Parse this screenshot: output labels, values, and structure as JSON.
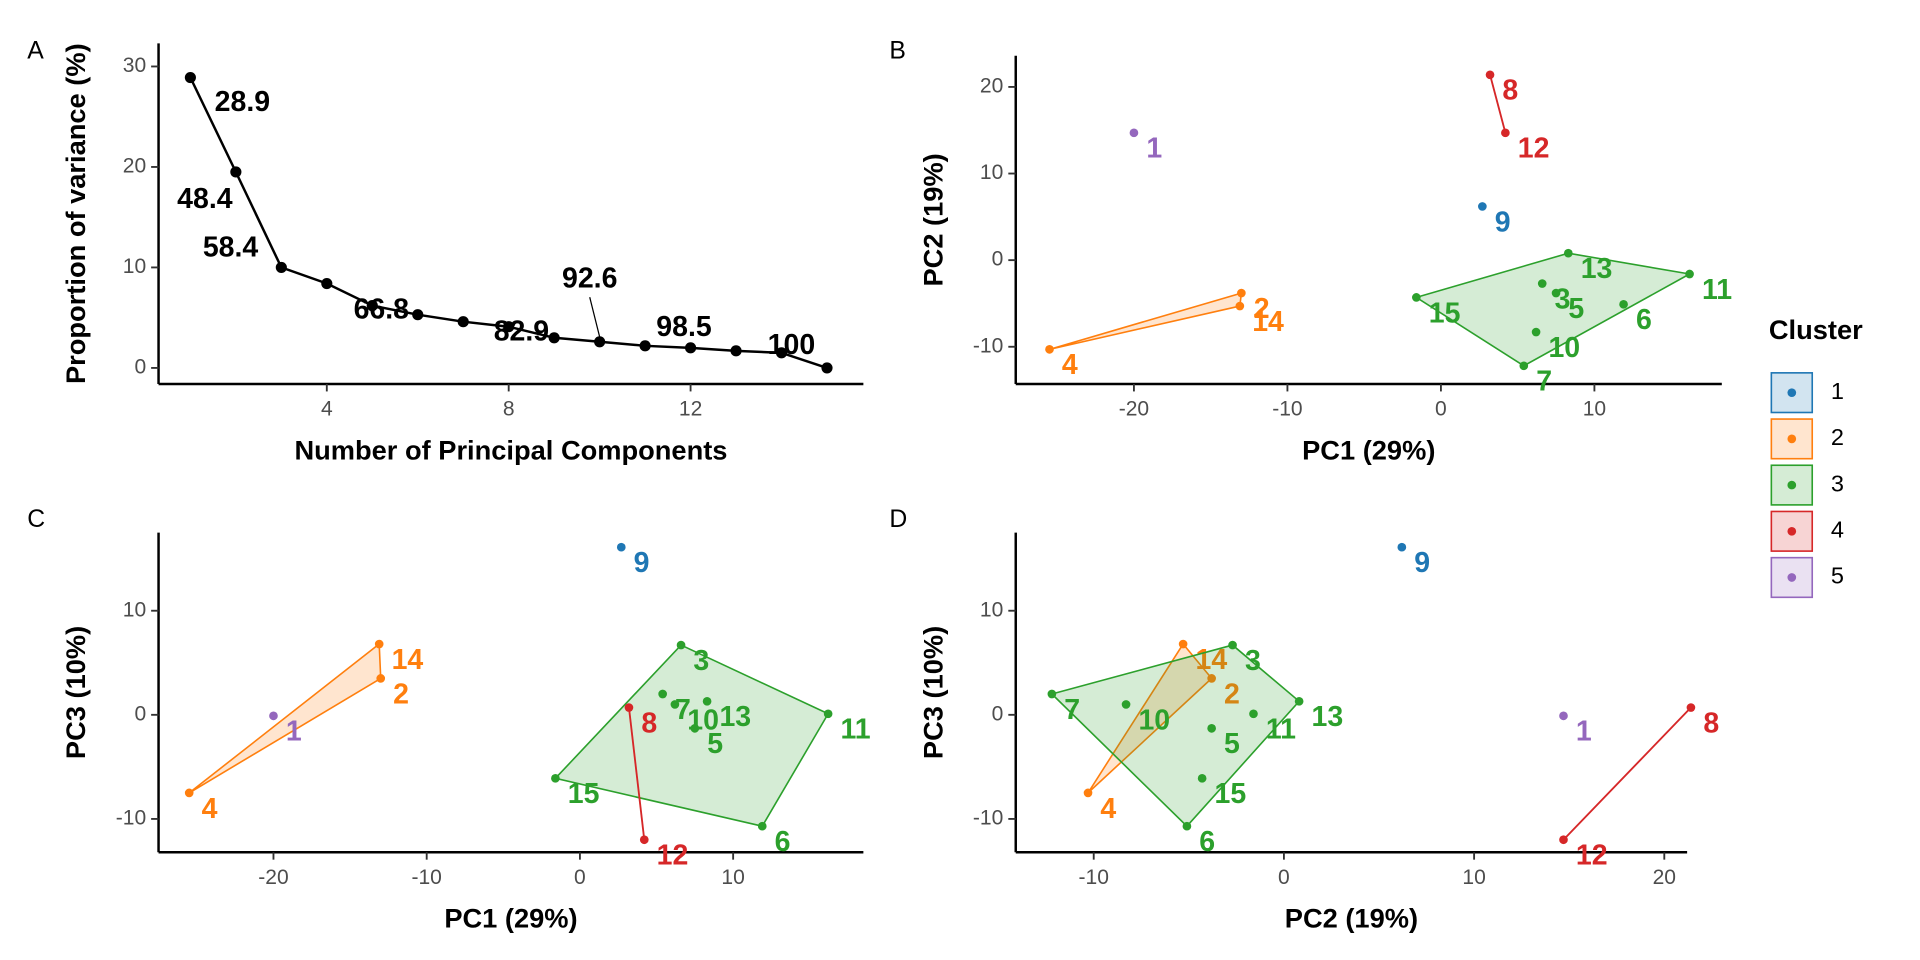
{
  "chart_data": [
    {
      "panel": "A",
      "type": "line",
      "x_label": "Number of Principal Components",
      "y_label": "Proportion of variance (%)",
      "x": [
        1,
        2,
        3,
        4,
        5,
        6,
        7,
        8,
        9,
        10,
        11,
        12,
        13,
        14,
        15
      ],
      "values": [
        28.9,
        19.5,
        10.0,
        8.4,
        6.2,
        5.3,
        4.6,
        4.1,
        3.0,
        2.6,
        2.2,
        2.0,
        1.7,
        1.5,
        0
      ],
      "color": "#000000",
      "annotations": [
        {
          "x": 1,
          "text": "28.9"
        },
        {
          "x": 2,
          "text": "48.4"
        },
        {
          "x": 3,
          "text": "58.4"
        },
        {
          "x": 4,
          "text": "66.8"
        },
        {
          "x": 7,
          "text": "82.9"
        },
        {
          "x": 10,
          "text": "92.6"
        },
        {
          "x": 13,
          "text": "98.5"
        },
        {
          "x": 14,
          "text": "100"
        }
      ],
      "xlim": [
        0.3,
        15.8
      ],
      "ylim": [
        -1.6,
        32.3
      ],
      "xticks": [
        4,
        8,
        12
      ],
      "yticks": [
        0,
        10,
        20,
        30
      ]
    },
    {
      "panel": "B",
      "type": "scatter",
      "x_label": "PC1 (29%)",
      "y_label": "PC2 (19%)",
      "xlim": [
        -27.7,
        18.3
      ],
      "ylim": [
        -14.3,
        23.6
      ],
      "xticks": [
        -20,
        -10,
        0,
        10
      ],
      "yticks": [
        -10,
        0,
        10,
        20
      ],
      "legend": {
        "title": "Cluster",
        "position": "right"
      },
      "series": [
        {
          "name": "1",
          "color": "#1f77b4",
          "labels": [
            "9"
          ],
          "x": [
            2.7
          ],
          "y": [
            6.2
          ]
        },
        {
          "name": "2",
          "color": "#ff7f0e",
          "labels": [
            "2",
            "4",
            "14"
          ],
          "x": [
            -13.0,
            -25.5,
            -13.1
          ],
          "y": [
            -3.8,
            -10.3,
            -5.3
          ]
        },
        {
          "name": "3",
          "color": "#2ca02c",
          "labels": [
            "3",
            "5",
            "6",
            "7",
            "10",
            "11",
            "13",
            "15"
          ],
          "x": [
            6.6,
            7.5,
            11.9,
            5.4,
            6.2,
            16.2,
            8.3,
            -1.6
          ],
          "y": [
            -2.7,
            -3.8,
            -5.1,
            -12.2,
            -8.3,
            -1.6,
            0.8,
            -4.3
          ]
        },
        {
          "name": "4",
          "color": "#d62728",
          "labels": [
            "8",
            "12"
          ],
          "x": [
            3.2,
            4.2
          ],
          "y": [
            21.4,
            14.7
          ]
        },
        {
          "name": "5",
          "color": "#9467bd",
          "labels": [
            "1"
          ],
          "x": [
            -20.0
          ],
          "y": [
            14.7
          ]
        }
      ]
    },
    {
      "panel": "C",
      "type": "scatter",
      "x_label": "PC1 (29%)",
      "y_label": "PC3 (10%)",
      "xlim": [
        -27.5,
        18.5
      ],
      "ylim": [
        -13.2,
        17.5
      ],
      "xticks": [
        -20,
        -10,
        0,
        10
      ],
      "yticks": [
        -10,
        0,
        10
      ],
      "series": [
        {
          "color": "#1f77b4",
          "labels": [
            "9"
          ],
          "x": [
            2.7
          ],
          "y": [
            16.1
          ]
        },
        {
          "color": "#ff7f0e",
          "labels": [
            "2",
            "4",
            "14"
          ],
          "x": [
            -13.0,
            -25.5,
            -13.1
          ],
          "y": [
            3.5,
            -7.5,
            6.8
          ]
        },
        {
          "color": "#2ca02c",
          "labels": [
            "3",
            "5",
            "6",
            "7",
            "10",
            "11",
            "13",
            "15"
          ],
          "x": [
            6.6,
            7.5,
            11.9,
            5.4,
            6.2,
            16.2,
            8.3,
            -1.6
          ],
          "y": [
            6.7,
            -1.3,
            -10.7,
            2.0,
            1.0,
            0.1,
            1.3,
            -6.1
          ]
        },
        {
          "color": "#d62728",
          "labels": [
            "8",
            "12"
          ],
          "x": [
            3.2,
            4.2
          ],
          "y": [
            0.7,
            -12.0
          ]
        },
        {
          "color": "#9467bd",
          "labels": [
            "1"
          ],
          "x": [
            -20.0
          ],
          "y": [
            -0.1
          ]
        }
      ]
    },
    {
      "panel": "D",
      "type": "scatter",
      "x_label": "PC2 (19%)",
      "y_label": "PC3 (10%)",
      "xlim": [
        -14.1,
        21.2
      ],
      "ylim": [
        -13.2,
        17.5
      ],
      "xticks": [
        -10,
        0,
        10,
        20
      ],
      "yticks": [
        -10,
        0,
        10
      ],
      "series": [
        {
          "color": "#1f77b4",
          "labels": [
            "9"
          ],
          "x": [
            6.2
          ],
          "y": [
            16.1
          ]
        },
        {
          "color": "#ff7f0e",
          "labels": [
            "2",
            "4",
            "14"
          ],
          "x": [
            -3.8,
            -10.3,
            -5.3
          ],
          "y": [
            3.5,
            -7.5,
            6.8
          ]
        },
        {
          "color": "#2ca02c",
          "labels": [
            "3",
            "5",
            "6",
            "7",
            "10",
            "11",
            "13",
            "15"
          ],
          "x": [
            -2.7,
            -3.8,
            -5.1,
            -12.2,
            -8.3,
            -1.6,
            0.8,
            -4.3
          ],
          "y": [
            6.7,
            -1.3,
            -10.7,
            2.0,
            1.0,
            0.1,
            1.3,
            -6.1
          ]
        },
        {
          "color": "#d62728",
          "labels": [
            "8",
            "12"
          ],
          "x": [
            21.4,
            14.7
          ],
          "y": [
            0.7,
            -12.0
          ]
        },
        {
          "color": "#9467bd",
          "labels": [
            "1"
          ],
          "x": [
            14.7
          ],
          "y": [
            -0.1
          ]
        }
      ]
    }
  ]
}
